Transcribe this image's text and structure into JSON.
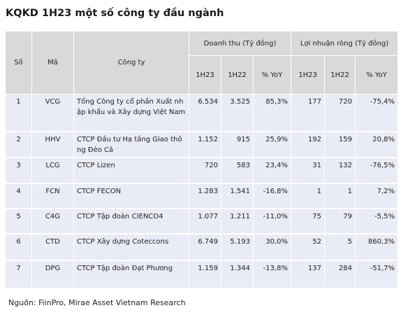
{
  "title": "KQKD 1H23 một số công ty đầu ngành",
  "headers": {
    "stt": "Số",
    "ticker": "Mã",
    "company": "Công ty",
    "revenue_group": "Doanh thu (Tỷ đồng)",
    "profit_group": "Lợi nhuận ròng (Tỷ đồng)",
    "sub": [
      "1H23",
      "1H22",
      "% YoY",
      "1H23",
      "1H22",
      "% YoY"
    ]
  },
  "rows": [
    {
      "stt": "1",
      "ticker": "VCG",
      "company": "Tổng Công ty cổ phần Xuất nhập khẩu và Xây dựng Việt Nam",
      "rev_1h23": "6.534",
      "rev_1h22": "3.525",
      "rev_yoy": "85,3%",
      "np_1h23": "177",
      "np_1h22": "720",
      "np_yoy": "-75,4%"
    },
    {
      "stt": "2",
      "ticker": "HHV",
      "company": "CTCP Đầu tư Hạ tầng Giao thông Đèo Cả",
      "rev_1h23": "1.152",
      "rev_1h22": "915",
      "rev_yoy": "25,9%",
      "np_1h23": "192",
      "np_1h22": "159",
      "np_yoy": "20,8%"
    },
    {
      "stt": "3",
      "ticker": "LCG",
      "company": "CTCP Lizen",
      "rev_1h23": "720",
      "rev_1h22": "583",
      "rev_yoy": "23,4%",
      "np_1h23": "31",
      "np_1h22": "132",
      "np_yoy": "-76,5%"
    },
    {
      "stt": "4",
      "ticker": "FCN",
      "company": "CTCP FECON",
      "rev_1h23": "1.283",
      "rev_1h22": "1.541",
      "rev_yoy": "-16,8%",
      "np_1h23": "1",
      "np_1h22": "1",
      "np_yoy": "7,2%"
    },
    {
      "stt": "5",
      "ticker": "C4G",
      "company": "CTCP Tập đoàn CIENCO4",
      "rev_1h23": "1.077",
      "rev_1h22": "1.211",
      "rev_yoy": "-11,0%",
      "np_1h23": "75",
      "np_1h22": "79",
      "np_yoy": "-5,5%"
    },
    {
      "stt": "6",
      "ticker": "CTD",
      "company": "CTCP Xây dựng Coteccons",
      "rev_1h23": "6.749",
      "rev_1h22": "5.193",
      "rev_yoy": "30,0%",
      "np_1h23": "52",
      "np_1h22": "5",
      "np_yoy": "860,3%"
    },
    {
      "stt": "7",
      "ticker": "DPG",
      "company": "CTCP Tập đoàn Đạt Phương",
      "rev_1h23": "1.159",
      "rev_1h22": "1.344",
      "rev_yoy": "-13,8%",
      "np_1h23": "137",
      "np_1h22": "284",
      "np_yoy": "-51,7%"
    }
  ],
  "source": "Nguồn: FiinPro, Mirae Asset Vietnam Research"
}
